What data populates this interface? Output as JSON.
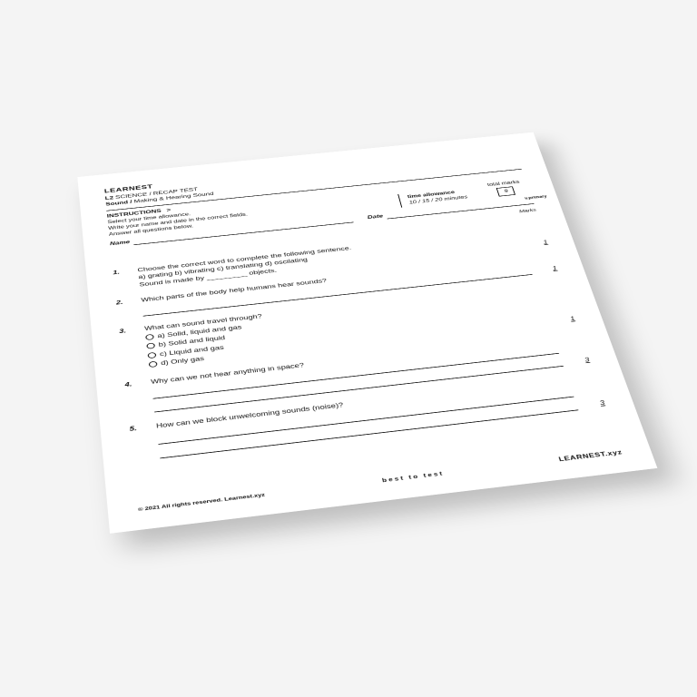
{
  "header": {
    "brand": "LEARNEST",
    "level": "L2",
    "course": "SCIENCE / RECAP TEST",
    "topic_bold": "Sound /",
    "topic_rest": "Making & Hearing Sound"
  },
  "instructions": {
    "heading": "INSTRUCTIONS",
    "chev": ">",
    "lines": [
      "Select your time allowance.",
      "Write your name and date in the correct fields.",
      "Answer all questions below."
    ]
  },
  "toprow": {
    "time_label": "time allowance",
    "time_value": "10 / 15 / 20 minutes",
    "marks_label": "total marks",
    "marks_value": "9",
    "side_tag": "v.primary"
  },
  "fields": {
    "name_label": "Name",
    "date_label": "Date"
  },
  "marks_word": "Marks",
  "questions": {
    "q1": {
      "num": "1.",
      "text": "Choose the correct word to complete the following sentence.",
      "choices_inline": "a) grating    b) vibrating    c) translating    d) oscilating",
      "fill": "Sound is made by _________ objects.",
      "mark": "1"
    },
    "q2": {
      "num": "2.",
      "text": "Which parts of the body help humans hear sounds?",
      "mark": "1"
    },
    "q3": {
      "num": "3.",
      "text": "What can sound travel through?",
      "a": "a) Solid, liquid and gas",
      "b": "b) Solid and liquid",
      "c": "c) Liquid and gas",
      "d": "d) Only gas",
      "mark": "1"
    },
    "q4": {
      "num": "4.",
      "text": "Why can we not hear anything in space?",
      "mark": "3"
    },
    "q5": {
      "num": "5.",
      "text": "How can we block unwelcoming sounds (noise)?",
      "mark": "3"
    }
  },
  "footer": {
    "copyright": "© 2021 All rights reserved. Learnest.xyz",
    "motto": "best to test",
    "site": "LEARNEST.xyz"
  },
  "colors": {
    "page_bg": "#f4f4f4",
    "sheet_bg": "#ffffff",
    "ink": "#111111"
  }
}
